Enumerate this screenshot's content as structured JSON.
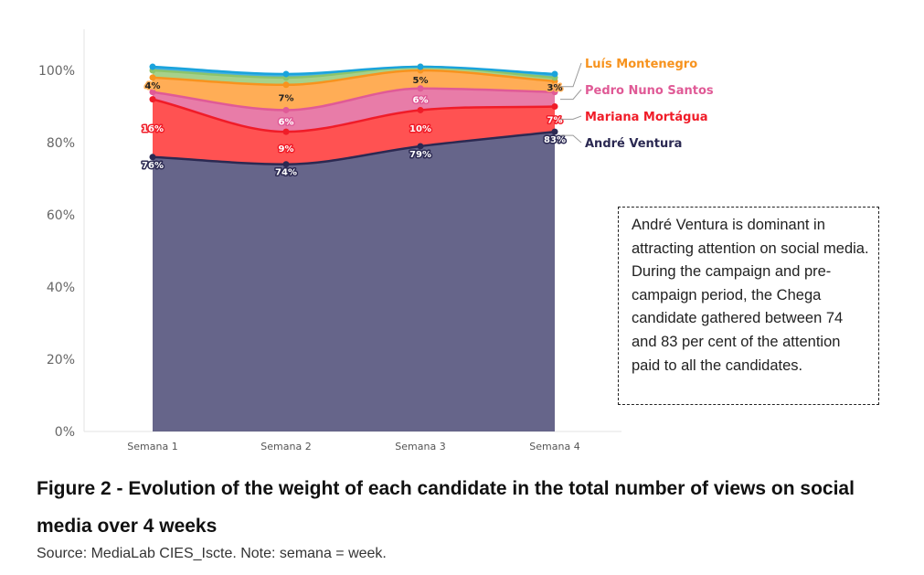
{
  "chart_data": {
    "type": "area",
    "stacked": true,
    "categories": [
      "Semana 1",
      "Semana 2",
      "Semana 3",
      "Semana 4"
    ],
    "ylim": [
      0,
      110
    ],
    "yticks": [
      "0%",
      "20%",
      "40%",
      "60%",
      "80%",
      "100%"
    ],
    "ytick_values": [
      0,
      20,
      40,
      60,
      80,
      100
    ],
    "grid": false,
    "legend_placement": "right",
    "series": [
      {
        "name": "André Ventura",
        "color": "#66658a",
        "line_color": "#2b2952",
        "label_color": "#2b2952",
        "values": [
          76,
          74,
          79,
          83
        ],
        "labels": [
          "76%",
          "74%",
          "79%",
          "83%"
        ]
      },
      {
        "name": "Mariana Mortágua",
        "color": "#ff5252",
        "line_color": "#f01c28",
        "label_color": "#f01c28",
        "values": [
          16,
          9,
          10,
          7
        ],
        "labels": [
          "16%",
          "9%",
          "10%",
          "7%"
        ]
      },
      {
        "name": "Pedro Nuno Santos",
        "color": "#e87ca8",
        "line_color": "#e05a96",
        "label_color": "#e05a96",
        "values": [
          2,
          6,
          6,
          4
        ],
        "labels": [
          "",
          "6%",
          "6%",
          ""
        ]
      },
      {
        "name": "Luís Montenegro",
        "color": "#ffad56",
        "line_color": "#f7931e",
        "label_color": "#f7931e",
        "values": [
          4,
          7,
          5,
          3
        ],
        "labels": [
          "4%",
          "7%",
          "5%",
          "3%"
        ]
      },
      {
        "name": "",
        "color": "#a6d18a",
        "line_color": "#8cc46c",
        "label_color": "#8cc46c",
        "values": [
          2,
          2,
          1,
          1
        ],
        "labels": [
          "",
          "",
          "",
          ""
        ]
      },
      {
        "name": "",
        "color": "#45b0e0",
        "line_color": "#1aa3dc",
        "label_color": "#1aa3dc",
        "values": [
          1,
          1,
          0,
          1
        ],
        "labels": [
          "",
          "",
          "",
          ""
        ]
      }
    ],
    "legend": [
      {
        "text": "Luís Montenegro",
        "color": "#f7931e"
      },
      {
        "text": "Pedro Nuno Santos",
        "color": "#e05a96"
      },
      {
        "text": "Mariana Mortágua",
        "color": "#f01c28"
      },
      {
        "text": "André Ventura",
        "color": "#2b2952"
      }
    ]
  },
  "annotation": {
    "text": "André Ventura is dominant in attracting attention on social media. During the campaign and pre-campaign period, the Chega candidate gathered between 74 and 83 per cent of the attention paid to all the candidates."
  },
  "figure": {
    "title": "Figure 2 - Evolution of the weight of each candidate in the total number of views on social media over 4 weeks",
    "source": "Source: MediaLab CIES_Iscte. Note: semana = week."
  }
}
